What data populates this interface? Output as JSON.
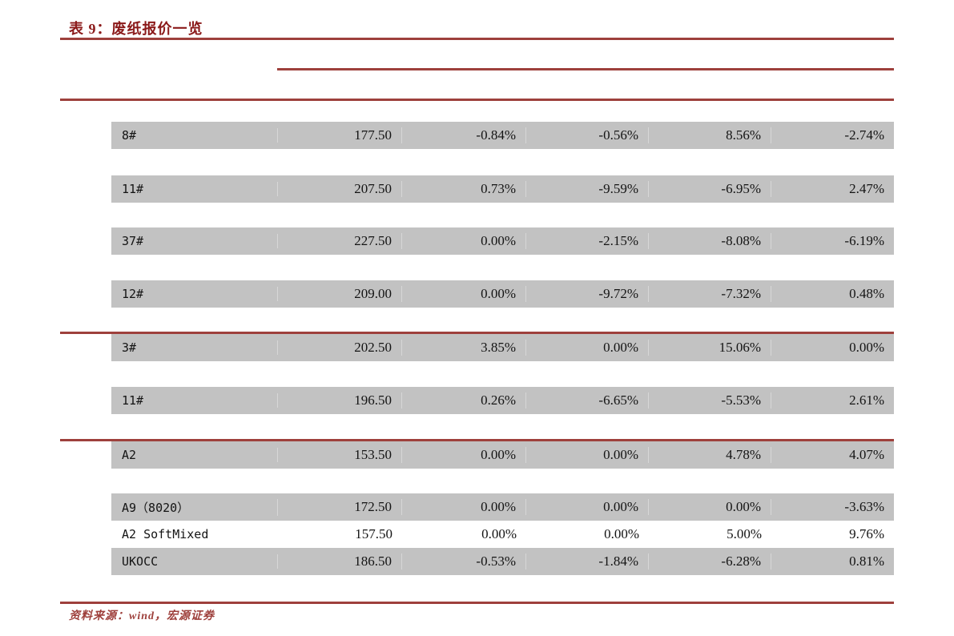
{
  "title": "表 9：废纸报价一览",
  "source_note": "资料来源：wind，宏源证券",
  "colors": {
    "accent_line": "#9e403c",
    "title_text": "#8b1a1a",
    "row_gray": "#c2c2c2"
  },
  "table": {
    "rows": [
      {
        "name": "8#",
        "price": "177.50",
        "changes": [
          "-0.84%",
          "-0.56%",
          "8.56%",
          "-2.74%"
        ],
        "highlight": false
      },
      {
        "name": "11#",
        "price": "207.50",
        "changes": [
          "0.73%",
          "-9.59%",
          "-6.95%",
          "2.47%"
        ],
        "highlight": false
      },
      {
        "name": "37#",
        "price": "227.50",
        "changes": [
          "0.00%",
          "-2.15%",
          "-8.08%",
          "-6.19%"
        ],
        "highlight": false
      },
      {
        "name": "12#",
        "price": "209.00",
        "changes": [
          "0.00%",
          "-9.72%",
          "-7.32%",
          "0.48%"
        ],
        "highlight": false
      },
      {
        "name": "3#",
        "price": "202.50",
        "changes": [
          "3.85%",
          "0.00%",
          "15.06%",
          "0.00%"
        ],
        "highlight": false
      },
      {
        "name": "11#",
        "price": "196.50",
        "changes": [
          "0.26%",
          "-6.65%",
          "-5.53%",
          "2.61%"
        ],
        "highlight": false
      },
      {
        "name": "A2",
        "price": "153.50",
        "changes": [
          "0.00%",
          "0.00%",
          "4.78%",
          "4.07%"
        ],
        "highlight": false
      },
      {
        "name": "A9（8020）",
        "price": "172.50",
        "changes": [
          "0.00%",
          "0.00%",
          "0.00%",
          "-3.63%"
        ],
        "highlight": false
      },
      {
        "name": "A2 SoftMixed",
        "price": "157.50",
        "changes": [
          "0.00%",
          "0.00%",
          "5.00%",
          "9.76%"
        ],
        "highlight": true
      },
      {
        "name": "UKOCC",
        "price": "186.50",
        "changes": [
          "-0.53%",
          "-1.84%",
          "-6.28%",
          "0.81%"
        ],
        "highlight": false
      }
    ]
  }
}
